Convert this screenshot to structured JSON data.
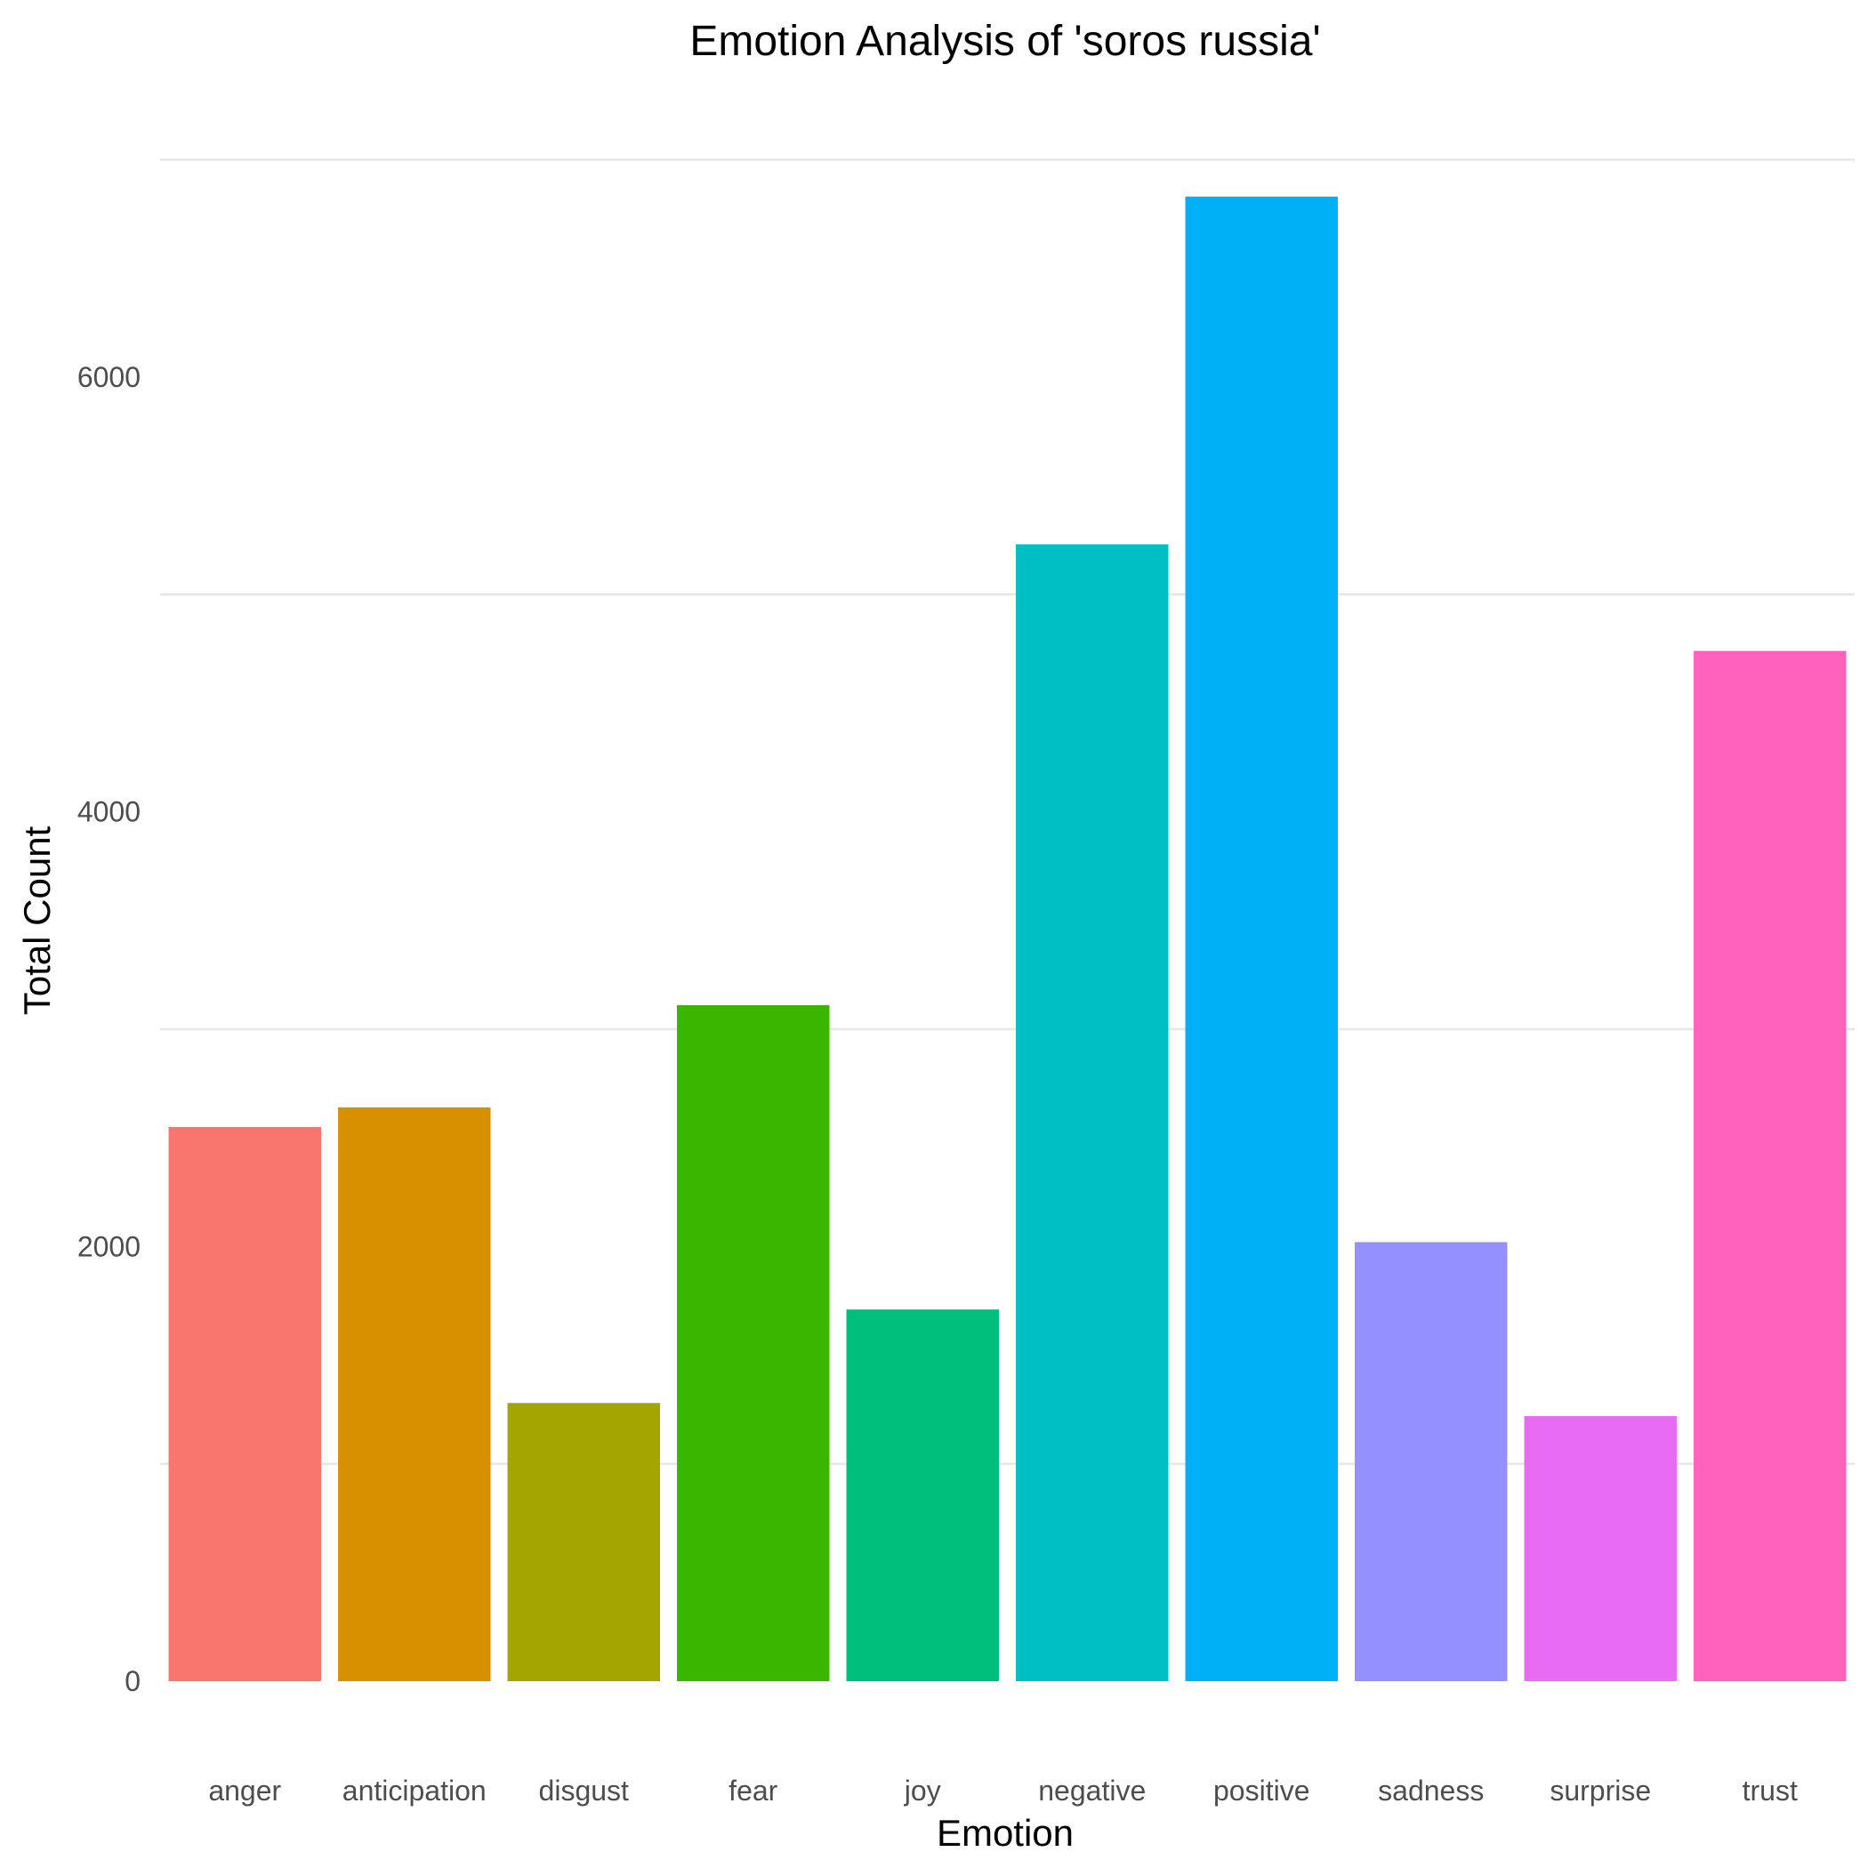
{
  "chart_data": {
    "type": "bar",
    "title": "Emotion Analysis of 'soros russia'",
    "xlabel": "Emotion",
    "ylabel": "Total Count",
    "categories": [
      "anger",
      "anticipation",
      "disgust",
      "fear",
      "joy",
      "negative",
      "positive",
      "sadness",
      "surprise",
      "trust"
    ],
    "values": [
      2550,
      2640,
      1280,
      3110,
      1710,
      5230,
      6830,
      2020,
      1220,
      4740
    ],
    "colors": [
      "#F8766D",
      "#D89000",
      "#A3A500",
      "#39B600",
      "#00BF7D",
      "#00BFC4",
      "#00B0F6",
      "#9590FF",
      "#E76BF3",
      "#FF62BC"
    ],
    "yticks": [
      0,
      2000,
      4000,
      6000
    ],
    "yticks_minor": [
      1000,
      3000,
      5000,
      7000
    ],
    "ylim": [
      0,
      7170
    ],
    "legend": "none",
    "grid": "horizontal"
  }
}
